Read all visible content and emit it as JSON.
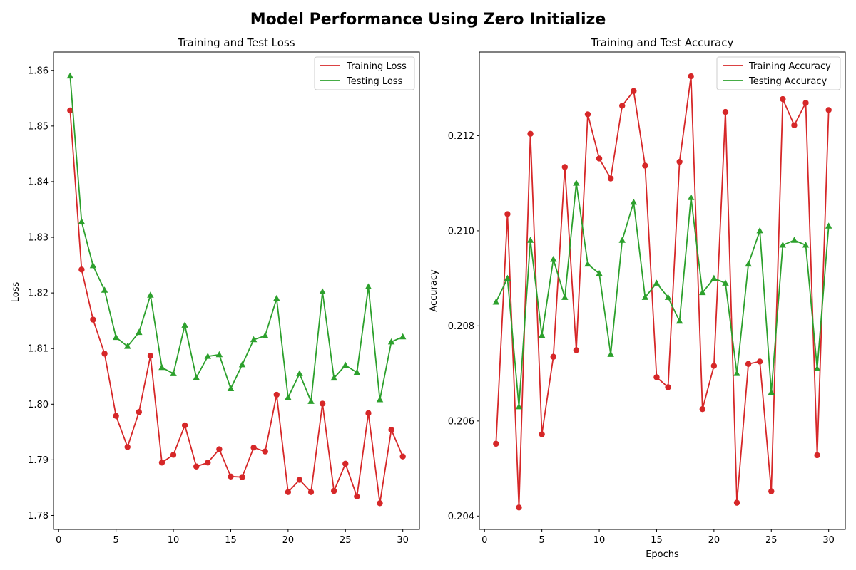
{
  "figure": {
    "suptitle": "Model Performance Using Zero Initialize"
  },
  "colors": {
    "training": "#d62728",
    "testing": "#2ca02c",
    "axes": "#000000",
    "legend_border": "#cccccc"
  },
  "chart_data": [
    {
      "type": "line",
      "title": "Training and Test Loss",
      "xlabel": "",
      "ylabel": "Loss",
      "xlim": [
        -0.45,
        31.45
      ],
      "ylim": [
        1.7775,
        1.8633
      ],
      "xticks": [
        0,
        5,
        10,
        15,
        20,
        25,
        30
      ],
      "xtick_labels": [
        "0",
        "5",
        "10",
        "15",
        "20",
        "25",
        "30"
      ],
      "yticks": [
        1.78,
        1.79,
        1.8,
        1.81,
        1.82,
        1.83,
        1.84,
        1.85,
        1.86
      ],
      "ytick_labels": [
        "1.78",
        "1.79",
        "1.80",
        "1.81",
        "1.82",
        "1.83",
        "1.84",
        "1.85",
        "1.86"
      ],
      "grid": false,
      "legend_position": "top-right",
      "x": [
        1,
        2,
        3,
        4,
        5,
        6,
        7,
        8,
        9,
        10,
        11,
        12,
        13,
        14,
        15,
        16,
        17,
        18,
        19,
        20,
        21,
        22,
        23,
        24,
        25,
        26,
        27,
        28,
        29,
        30
      ],
      "series": [
        {
          "name": "Training Loss",
          "color": "#d62728",
          "marker": "circle",
          "values": [
            1.8528,
            1.8242,
            1.8152,
            1.8091,
            1.7979,
            1.7923,
            1.7986,
            1.8087,
            1.7895,
            1.7909,
            1.7962,
            1.7888,
            1.7895,
            1.7919,
            1.787,
            1.7869,
            1.7922,
            1.7915,
            1.8017,
            1.7842,
            1.7864,
            1.7842,
            1.8001,
            1.7844,
            1.7893,
            1.7834,
            1.7984,
            1.7822,
            1.7954,
            1.7906
          ]
        },
        {
          "name": "Testing Loss",
          "color": "#2ca02c",
          "marker": "triangle",
          "values": [
            1.859,
            1.8328,
            1.8249,
            1.8205,
            1.812,
            1.8104,
            1.8129,
            1.8196,
            1.8066,
            1.8055,
            1.8142,
            1.8048,
            1.8086,
            1.8089,
            1.8028,
            1.8071,
            1.8116,
            1.8123,
            1.819,
            1.8012,
            1.8055,
            1.8005,
            1.8202,
            1.8047,
            1.807,
            1.8057,
            1.8211,
            1.8008,
            1.8112,
            1.8121
          ]
        }
      ]
    },
    {
      "type": "line",
      "title": "Training and Test Accuracy",
      "xlabel": "Epochs",
      "ylabel": "Accuracy",
      "xlim": [
        -0.45,
        31.45
      ],
      "ylim": [
        0.20372,
        0.21376
      ],
      "xticks": [
        0,
        5,
        10,
        15,
        20,
        25,
        30
      ],
      "xtick_labels": [
        "0",
        "5",
        "10",
        "15",
        "20",
        "25",
        "30"
      ],
      "yticks": [
        0.204,
        0.206,
        0.208,
        0.21,
        0.212
      ],
      "ytick_labels": [
        "0.204",
        "0.206",
        "0.208",
        "0.210",
        "0.212"
      ],
      "grid": false,
      "legend_position": "top-right",
      "x": [
        1,
        2,
        3,
        4,
        5,
        6,
        7,
        8,
        9,
        10,
        11,
        12,
        13,
        14,
        15,
        16,
        17,
        18,
        19,
        20,
        21,
        22,
        23,
        24,
        25,
        26,
        27,
        28,
        29,
        30
      ],
      "series": [
        {
          "name": "Training Accuracy",
          "color": "#d62728",
          "marker": "circle",
          "values": [
            0.20552,
            0.21035,
            0.20418,
            0.21204,
            0.20572,
            0.20735,
            0.21134,
            0.20749,
            0.21245,
            0.21152,
            0.2111,
            0.21263,
            0.21294,
            0.21137,
            0.20692,
            0.20671,
            0.21145,
            0.21325,
            0.20625,
            0.20716,
            0.2125,
            0.20428,
            0.2072,
            0.20725,
            0.20452,
            0.21277,
            0.21222,
            0.21269,
            0.20528,
            0.21254
          ]
        },
        {
          "name": "Testing Accuracy",
          "color": "#2ca02c",
          "marker": "triangle",
          "values": [
            0.2085,
            0.209,
            0.2063,
            0.2098,
            0.2078,
            0.2094,
            0.2086,
            0.211,
            0.2093,
            0.2091,
            0.2074,
            0.2098,
            0.2106,
            0.2086,
            0.2089,
            0.2086,
            0.2081,
            0.2107,
            0.2087,
            0.209,
            0.2089,
            0.207,
            0.2093,
            0.21,
            0.2066,
            0.2097,
            0.2098,
            0.2097,
            0.2071,
            0.2101
          ]
        }
      ]
    }
  ]
}
